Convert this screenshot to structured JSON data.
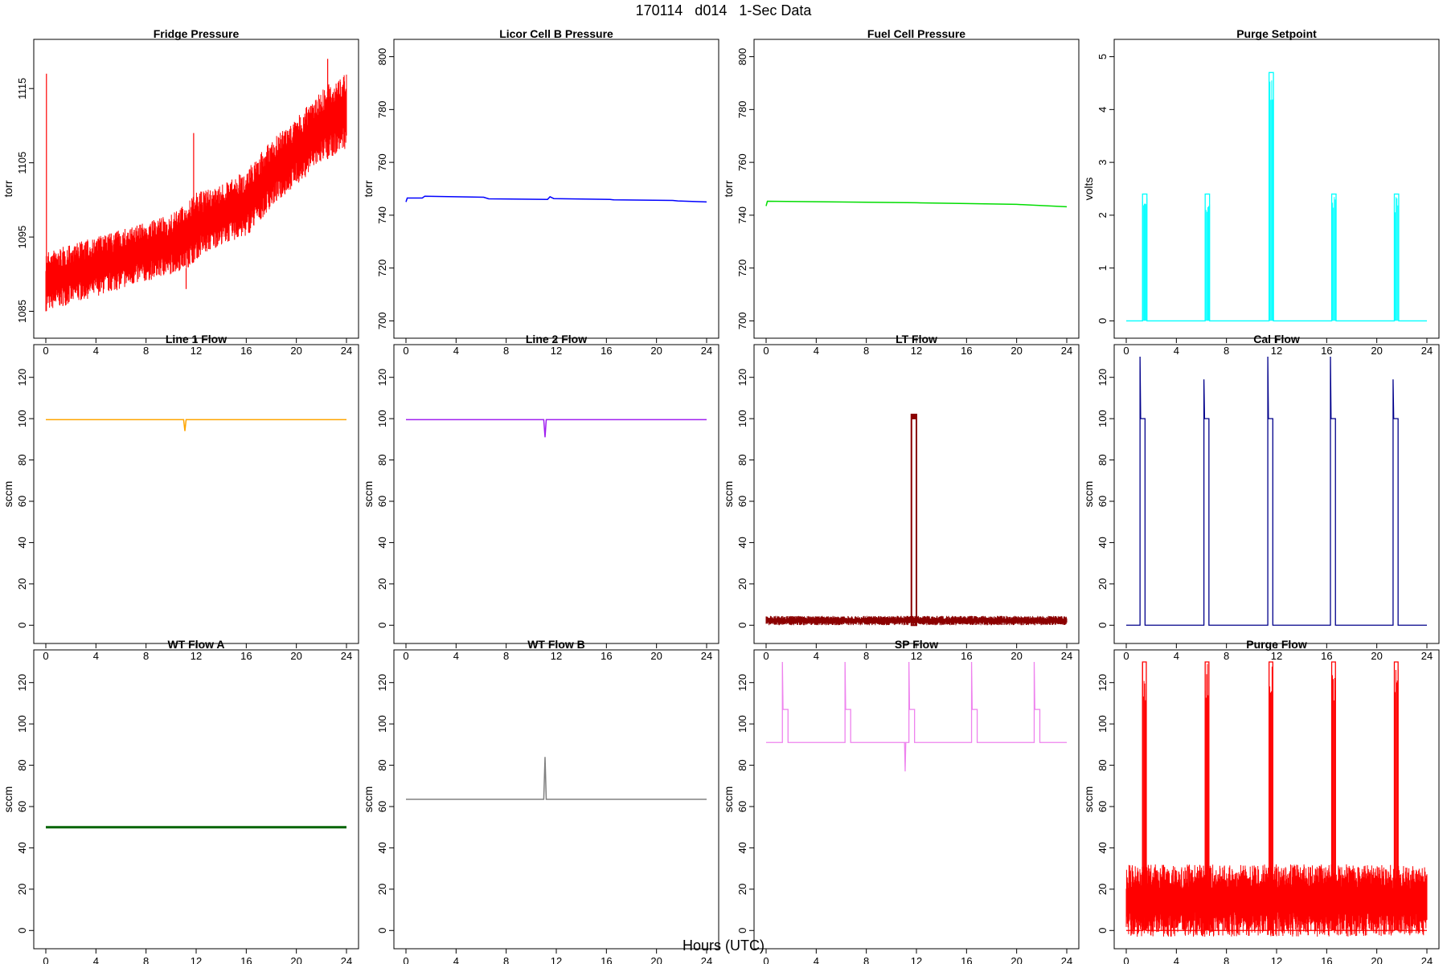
{
  "figure": {
    "title": "170114   d014   1-Sec Data",
    "xlabel": "Hours (UTC)"
  },
  "chart_data": [
    {
      "type": "line",
      "title": "Fridge Pressure",
      "ylabel": "torr",
      "color": "#ff0000",
      "xlim": [
        0,
        24
      ],
      "ylim": [
        1083,
        1120
      ],
      "yticks": [
        1085,
        1095,
        1105,
        1115
      ],
      "xticks": [
        0,
        4,
        8,
        12,
        16,
        20,
        24
      ],
      "band": {
        "x": [
          0,
          2,
          4,
          6,
          8,
          10,
          11.5,
          12,
          14,
          16,
          17,
          18,
          20,
          22,
          24
        ],
        "low": [
          1085,
          1086,
          1087,
          1088,
          1089,
          1090,
          1091,
          1092,
          1094,
          1095,
          1097,
          1099,
          1102,
          1105,
          1107
        ],
        "high": [
          1093,
          1094,
          1095,
          1096,
          1097,
          1098,
          1100,
          1101,
          1102,
          1104,
          1106,
          1108,
          1111,
          1115,
          1117
        ]
      },
      "spikes": [
        [
          0.05,
          1117
        ],
        [
          11.8,
          1109
        ],
        [
          11.2,
          1088
        ],
        [
          22.5,
          1119
        ]
      ]
    },
    {
      "type": "line",
      "title": "Licor Cell B Pressure",
      "ylabel": "torr",
      "color": "#0000ff",
      "xlim": [
        0,
        24
      ],
      "ylim": [
        698,
        802
      ],
      "yticks": [
        700,
        720,
        740,
        760,
        780,
        800
      ],
      "xticks": [
        0,
        4,
        8,
        12,
        16,
        20,
        24
      ],
      "x": [
        0,
        0.1,
        1.3,
        1.5,
        6.2,
        6.6,
        11.3,
        11.5,
        11.8,
        16.3,
        16.6,
        21.3,
        21.7,
        24
      ],
      "y": [
        745,
        746.5,
        746.5,
        747.2,
        746.8,
        746.2,
        746.0,
        747.0,
        746.3,
        746.0,
        745.8,
        745.6,
        745.4,
        745.0
      ]
    },
    {
      "type": "line",
      "title": "Fuel Cell Pressure",
      "ylabel": "torr",
      "color": "#00dd00",
      "xlim": [
        0,
        24
      ],
      "ylim": [
        698,
        802
      ],
      "yticks": [
        700,
        720,
        740,
        760,
        780,
        800
      ],
      "xticks": [
        0,
        4,
        8,
        12,
        16,
        20,
        24
      ],
      "x": [
        0,
        0.1,
        4,
        8,
        12,
        16,
        20,
        24
      ],
      "y": [
        743.5,
        745.3,
        745.1,
        744.9,
        744.7,
        744.4,
        744.1,
        743.2
      ]
    },
    {
      "type": "line",
      "title": "Purge Setpoint",
      "ylabel": "volts",
      "color": "#00ffff",
      "xlim": [
        0,
        24
      ],
      "ylim": [
        -0.1,
        5.1
      ],
      "yticks": [
        0,
        1,
        2,
        3,
        4,
        5
      ],
      "xticks": [
        0,
        4,
        8,
        12,
        16,
        20,
        24
      ],
      "events": [
        [
          1.3,
          2.4
        ],
        [
          6.3,
          2.4
        ],
        [
          11.4,
          4.7
        ],
        [
          16.4,
          2.4
        ],
        [
          21.4,
          2.4
        ]
      ],
      "event_width": 0.35
    },
    {
      "type": "line",
      "title": "Line 1 Flow",
      "ylabel": "sccm",
      "color": "#ffa500",
      "xlim": [
        0,
        24
      ],
      "ylim": [
        -3,
        130
      ],
      "yticks": [
        0,
        20,
        40,
        60,
        80,
        100,
        120
      ],
      "xticks": [
        0,
        4,
        8,
        12,
        16,
        20,
        24
      ],
      "x": [
        0,
        11.0,
        11.1,
        11.2,
        11.3,
        24
      ],
      "y": [
        99.5,
        99.5,
        94,
        99.5,
        99.5,
        99.5
      ]
    },
    {
      "type": "line",
      "title": "Line 2 Flow",
      "ylabel": "sccm",
      "color": "#a020f0",
      "xlim": [
        0,
        24
      ],
      "ylim": [
        -3,
        130
      ],
      "yticks": [
        0,
        20,
        40,
        60,
        80,
        100,
        120
      ],
      "xticks": [
        0,
        4,
        8,
        12,
        16,
        20,
        24
      ],
      "x": [
        0,
        11.0,
        11.1,
        11.2,
        11.3,
        24
      ],
      "y": [
        99.5,
        99.5,
        91,
        99.5,
        99.5,
        99.5
      ]
    },
    {
      "type": "line",
      "title": "LT Flow",
      "ylabel": "sccm",
      "color": "#8b0000",
      "xlim": [
        0,
        24
      ],
      "ylim": [
        -3,
        130
      ],
      "yticks": [
        0,
        20,
        40,
        60,
        80,
        100,
        120
      ],
      "xticks": [
        0,
        4,
        8,
        12,
        16,
        20,
        24
      ],
      "band": {
        "x": [
          0,
          24
        ],
        "low": [
          0,
          0
        ],
        "high": [
          4.5,
          4.5
        ]
      },
      "pulse": {
        "x0": 11.6,
        "x1": 12.0,
        "y": 102
      }
    },
    {
      "type": "line",
      "title": "Cal Flow",
      "ylabel": "sccm",
      "color": "#00008b",
      "xlim": [
        0,
        24
      ],
      "ylim": [
        -3,
        130
      ],
      "yticks": [
        0,
        20,
        40,
        60,
        80,
        100,
        120
      ],
      "xticks": [
        0,
        4,
        8,
        12,
        16,
        20,
        24
      ],
      "events": [
        [
          1.1,
          130
        ],
        [
          6.2,
          119
        ],
        [
          11.3,
          130
        ],
        [
          16.3,
          130
        ],
        [
          21.3,
          119
        ]
      ],
      "event_width": 0.4,
      "event_level": 100
    },
    {
      "type": "line",
      "title": "WT Flow A",
      "ylabel": "sccm",
      "color": "#006400",
      "xlim": [
        0,
        24
      ],
      "ylim": [
        -3,
        130
      ],
      "yticks": [
        0,
        20,
        40,
        60,
        80,
        100,
        120
      ],
      "xticks": [
        0,
        4,
        8,
        12,
        16,
        20,
        24
      ],
      "x": [
        0,
        24
      ],
      "y": [
        50,
        50
      ]
    },
    {
      "type": "line",
      "title": "WT Flow B",
      "ylabel": "sccm",
      "color": "#808080",
      "xlim": [
        0,
        24
      ],
      "ylim": [
        -3,
        130
      ],
      "yticks": [
        0,
        20,
        40,
        60,
        80,
        100,
        120
      ],
      "xticks": [
        0,
        4,
        8,
        12,
        16,
        20,
        24
      ],
      "x": [
        0,
        11.0,
        11.1,
        11.2,
        11.3,
        24
      ],
      "y": [
        63.5,
        63.5,
        84,
        63.5,
        63.5,
        63.5
      ]
    },
    {
      "type": "line",
      "title": "SP Flow",
      "ylabel": "sccm",
      "color": "#ee82ee",
      "xlim": [
        0,
        24
      ],
      "ylim": [
        -3,
        130
      ],
      "yticks": [
        0,
        20,
        40,
        60,
        80,
        100,
        120
      ],
      "xticks": [
        0,
        4,
        8,
        12,
        16,
        20,
        24
      ],
      "baseline": 91,
      "events": [
        [
          1.3,
          130
        ],
        [
          6.3,
          130
        ],
        [
          11.4,
          130
        ],
        [
          16.4,
          130
        ],
        [
          21.4,
          130
        ]
      ],
      "event_width": 0.45,
      "event_level": 107,
      "dip": [
        11.1,
        77
      ]
    },
    {
      "type": "line",
      "title": "Purge Flow",
      "ylabel": "sccm",
      "color": "#ff0000",
      "xlim": [
        0,
        24
      ],
      "ylim": [
        -3,
        130
      ],
      "yticks": [
        0,
        20,
        40,
        60,
        80,
        100,
        120
      ],
      "xticks": [
        0,
        4,
        8,
        12,
        16,
        20,
        24
      ],
      "band": {
        "x": [
          0,
          24
        ],
        "low": [
          -3,
          -3
        ],
        "high": [
          32,
          32
        ]
      },
      "events": [
        [
          1.3,
          130
        ],
        [
          6.3,
          130
        ],
        [
          11.4,
          130
        ],
        [
          16.4,
          130
        ],
        [
          21.4,
          130
        ]
      ],
      "event_width": 0.3
    }
  ]
}
